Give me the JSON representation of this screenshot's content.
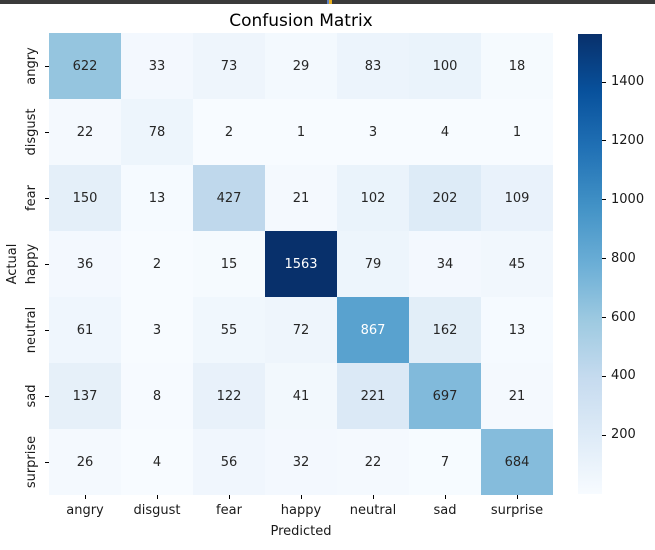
{
  "top_strip": {
    "background": "#3a3a3a",
    "accent_blue": "#5b82c8",
    "accent_yellow": "#e8ae1c"
  },
  "chart_data": {
    "type": "heatmap",
    "title": "Confusion Matrix",
    "xlabel": "Predicted",
    "ylabel": "Actual",
    "x_categories": [
      "angry",
      "disgust",
      "fear",
      "happy",
      "neutral",
      "sad",
      "surprise"
    ],
    "y_categories": [
      "angry",
      "disgust",
      "fear",
      "happy",
      "neutral",
      "sad",
      "surprise"
    ],
    "matrix": [
      [
        622,
        33,
        73,
        29,
        83,
        100,
        18
      ],
      [
        22,
        78,
        2,
        1,
        3,
        4,
        1
      ],
      [
        150,
        13,
        427,
        21,
        102,
        202,
        109
      ],
      [
        36,
        2,
        15,
        1563,
        79,
        34,
        45
      ],
      [
        61,
        3,
        55,
        72,
        867,
        162,
        13
      ],
      [
        137,
        8,
        122,
        41,
        221,
        697,
        21
      ],
      [
        26,
        4,
        56,
        32,
        22,
        7,
        684
      ]
    ],
    "colormap": "Blues",
    "vmin": 1,
    "vmax": 1563,
    "colorbar": {
      "position": "right",
      "ticks": [
        200,
        400,
        600,
        800,
        1000,
        1200,
        1400
      ]
    },
    "annotation_colors": {
      "dark_text": "#262626",
      "light_text": "#ffffff"
    },
    "grid": false
  }
}
